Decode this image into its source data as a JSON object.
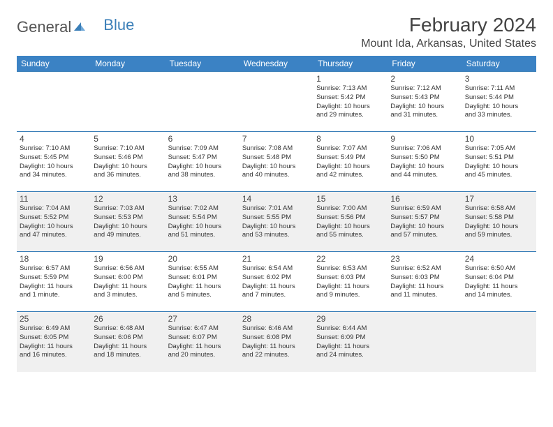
{
  "logo": {
    "part1": "General",
    "part2": "Blue"
  },
  "header": {
    "month_title": "February 2024",
    "location": "Mount Ida, Arkansas, United States"
  },
  "colors": {
    "header_bg": "#3b82c4",
    "header_text": "#ffffff",
    "border": "#3b7fb8",
    "shaded_bg": "#f0f0f0",
    "text": "#333333",
    "logo_blue": "#3b7fb8"
  },
  "days_of_week": [
    "Sunday",
    "Monday",
    "Tuesday",
    "Wednesday",
    "Thursday",
    "Friday",
    "Saturday"
  ],
  "weeks": [
    {
      "shaded": false,
      "cells": [
        {
          "blank": true
        },
        {
          "blank": true
        },
        {
          "blank": true
        },
        {
          "blank": true
        },
        {
          "day": "1",
          "sunrise": "Sunrise: 7:13 AM",
          "sunset": "Sunset: 5:42 PM",
          "dl1": "Daylight: 10 hours",
          "dl2": "and 29 minutes."
        },
        {
          "day": "2",
          "sunrise": "Sunrise: 7:12 AM",
          "sunset": "Sunset: 5:43 PM",
          "dl1": "Daylight: 10 hours",
          "dl2": "and 31 minutes."
        },
        {
          "day": "3",
          "sunrise": "Sunrise: 7:11 AM",
          "sunset": "Sunset: 5:44 PM",
          "dl1": "Daylight: 10 hours",
          "dl2": "and 33 minutes."
        }
      ]
    },
    {
      "shaded": false,
      "cells": [
        {
          "day": "4",
          "sunrise": "Sunrise: 7:10 AM",
          "sunset": "Sunset: 5:45 PM",
          "dl1": "Daylight: 10 hours",
          "dl2": "and 34 minutes."
        },
        {
          "day": "5",
          "sunrise": "Sunrise: 7:10 AM",
          "sunset": "Sunset: 5:46 PM",
          "dl1": "Daylight: 10 hours",
          "dl2": "and 36 minutes."
        },
        {
          "day": "6",
          "sunrise": "Sunrise: 7:09 AM",
          "sunset": "Sunset: 5:47 PM",
          "dl1": "Daylight: 10 hours",
          "dl2": "and 38 minutes."
        },
        {
          "day": "7",
          "sunrise": "Sunrise: 7:08 AM",
          "sunset": "Sunset: 5:48 PM",
          "dl1": "Daylight: 10 hours",
          "dl2": "and 40 minutes."
        },
        {
          "day": "8",
          "sunrise": "Sunrise: 7:07 AM",
          "sunset": "Sunset: 5:49 PM",
          "dl1": "Daylight: 10 hours",
          "dl2": "and 42 minutes."
        },
        {
          "day": "9",
          "sunrise": "Sunrise: 7:06 AM",
          "sunset": "Sunset: 5:50 PM",
          "dl1": "Daylight: 10 hours",
          "dl2": "and 44 minutes."
        },
        {
          "day": "10",
          "sunrise": "Sunrise: 7:05 AM",
          "sunset": "Sunset: 5:51 PM",
          "dl1": "Daylight: 10 hours",
          "dl2": "and 45 minutes."
        }
      ]
    },
    {
      "shaded": true,
      "cells": [
        {
          "day": "11",
          "sunrise": "Sunrise: 7:04 AM",
          "sunset": "Sunset: 5:52 PM",
          "dl1": "Daylight: 10 hours",
          "dl2": "and 47 minutes."
        },
        {
          "day": "12",
          "sunrise": "Sunrise: 7:03 AM",
          "sunset": "Sunset: 5:53 PM",
          "dl1": "Daylight: 10 hours",
          "dl2": "and 49 minutes."
        },
        {
          "day": "13",
          "sunrise": "Sunrise: 7:02 AM",
          "sunset": "Sunset: 5:54 PM",
          "dl1": "Daylight: 10 hours",
          "dl2": "and 51 minutes."
        },
        {
          "day": "14",
          "sunrise": "Sunrise: 7:01 AM",
          "sunset": "Sunset: 5:55 PM",
          "dl1": "Daylight: 10 hours",
          "dl2": "and 53 minutes."
        },
        {
          "day": "15",
          "sunrise": "Sunrise: 7:00 AM",
          "sunset": "Sunset: 5:56 PM",
          "dl1": "Daylight: 10 hours",
          "dl2": "and 55 minutes."
        },
        {
          "day": "16",
          "sunrise": "Sunrise: 6:59 AM",
          "sunset": "Sunset: 5:57 PM",
          "dl1": "Daylight: 10 hours",
          "dl2": "and 57 minutes."
        },
        {
          "day": "17",
          "sunrise": "Sunrise: 6:58 AM",
          "sunset": "Sunset: 5:58 PM",
          "dl1": "Daylight: 10 hours",
          "dl2": "and 59 minutes."
        }
      ]
    },
    {
      "shaded": false,
      "cells": [
        {
          "day": "18",
          "sunrise": "Sunrise: 6:57 AM",
          "sunset": "Sunset: 5:59 PM",
          "dl1": "Daylight: 11 hours",
          "dl2": "and 1 minute."
        },
        {
          "day": "19",
          "sunrise": "Sunrise: 6:56 AM",
          "sunset": "Sunset: 6:00 PM",
          "dl1": "Daylight: 11 hours",
          "dl2": "and 3 minutes."
        },
        {
          "day": "20",
          "sunrise": "Sunrise: 6:55 AM",
          "sunset": "Sunset: 6:01 PM",
          "dl1": "Daylight: 11 hours",
          "dl2": "and 5 minutes."
        },
        {
          "day": "21",
          "sunrise": "Sunrise: 6:54 AM",
          "sunset": "Sunset: 6:02 PM",
          "dl1": "Daylight: 11 hours",
          "dl2": "and 7 minutes."
        },
        {
          "day": "22",
          "sunrise": "Sunrise: 6:53 AM",
          "sunset": "Sunset: 6:03 PM",
          "dl1": "Daylight: 11 hours",
          "dl2": "and 9 minutes."
        },
        {
          "day": "23",
          "sunrise": "Sunrise: 6:52 AM",
          "sunset": "Sunset: 6:03 PM",
          "dl1": "Daylight: 11 hours",
          "dl2": "and 11 minutes."
        },
        {
          "day": "24",
          "sunrise": "Sunrise: 6:50 AM",
          "sunset": "Sunset: 6:04 PM",
          "dl1": "Daylight: 11 hours",
          "dl2": "and 14 minutes."
        }
      ]
    },
    {
      "shaded": true,
      "cells": [
        {
          "day": "25",
          "sunrise": "Sunrise: 6:49 AM",
          "sunset": "Sunset: 6:05 PM",
          "dl1": "Daylight: 11 hours",
          "dl2": "and 16 minutes."
        },
        {
          "day": "26",
          "sunrise": "Sunrise: 6:48 AM",
          "sunset": "Sunset: 6:06 PM",
          "dl1": "Daylight: 11 hours",
          "dl2": "and 18 minutes."
        },
        {
          "day": "27",
          "sunrise": "Sunrise: 6:47 AM",
          "sunset": "Sunset: 6:07 PM",
          "dl1": "Daylight: 11 hours",
          "dl2": "and 20 minutes."
        },
        {
          "day": "28",
          "sunrise": "Sunrise: 6:46 AM",
          "sunset": "Sunset: 6:08 PM",
          "dl1": "Daylight: 11 hours",
          "dl2": "and 22 minutes."
        },
        {
          "day": "29",
          "sunrise": "Sunrise: 6:44 AM",
          "sunset": "Sunset: 6:09 PM",
          "dl1": "Daylight: 11 hours",
          "dl2": "and 24 minutes."
        },
        {
          "blank": true
        },
        {
          "blank": true
        }
      ]
    }
  ]
}
